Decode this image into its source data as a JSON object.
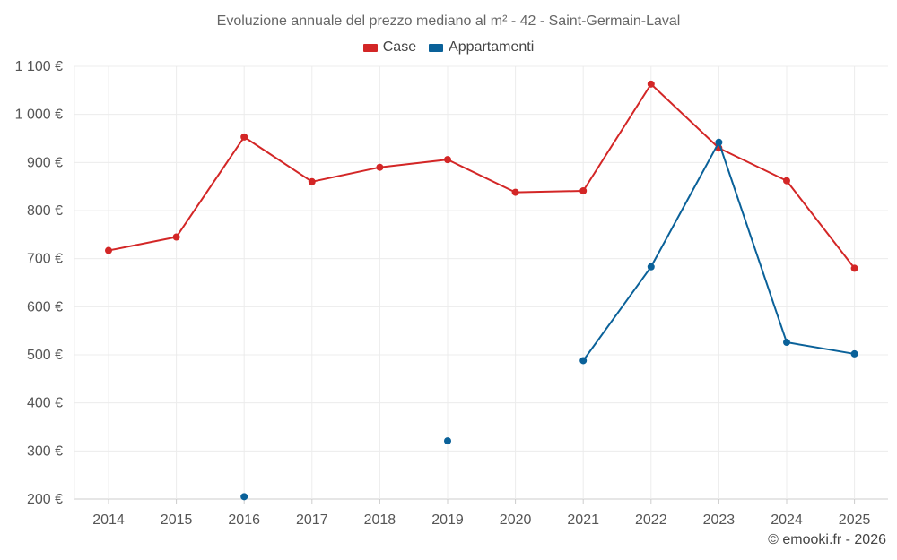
{
  "chart_data": {
    "type": "line",
    "title": "Evoluzione annuale del prezzo mediano al m² - 42 - Saint-Germain-Laval",
    "x": [
      "2014",
      "2015",
      "2016",
      "2017",
      "2018",
      "2019",
      "2020",
      "2021",
      "2022",
      "2023",
      "2024",
      "2025"
    ],
    "y_ticks": [
      "200 €",
      "300 €",
      "400 €",
      "500 €",
      "600 €",
      "700 €",
      "800 €",
      "900 €",
      "1 000 €",
      "1 100 €"
    ],
    "ylim": [
      200,
      1100
    ],
    "grid": true,
    "legend_position": "top-center",
    "series": [
      {
        "name": "Case",
        "color": "#d32626",
        "values": [
          717,
          745,
          953,
          860,
          890,
          906,
          838,
          841,
          1063,
          930,
          862,
          680
        ]
      },
      {
        "name": "Appartamenti",
        "color": "#0a6199",
        "values": [
          null,
          null,
          205,
          null,
          null,
          321,
          null,
          488,
          683,
          942,
          526,
          502
        ]
      }
    ]
  },
  "credit": "© emooki.fr - 2026"
}
